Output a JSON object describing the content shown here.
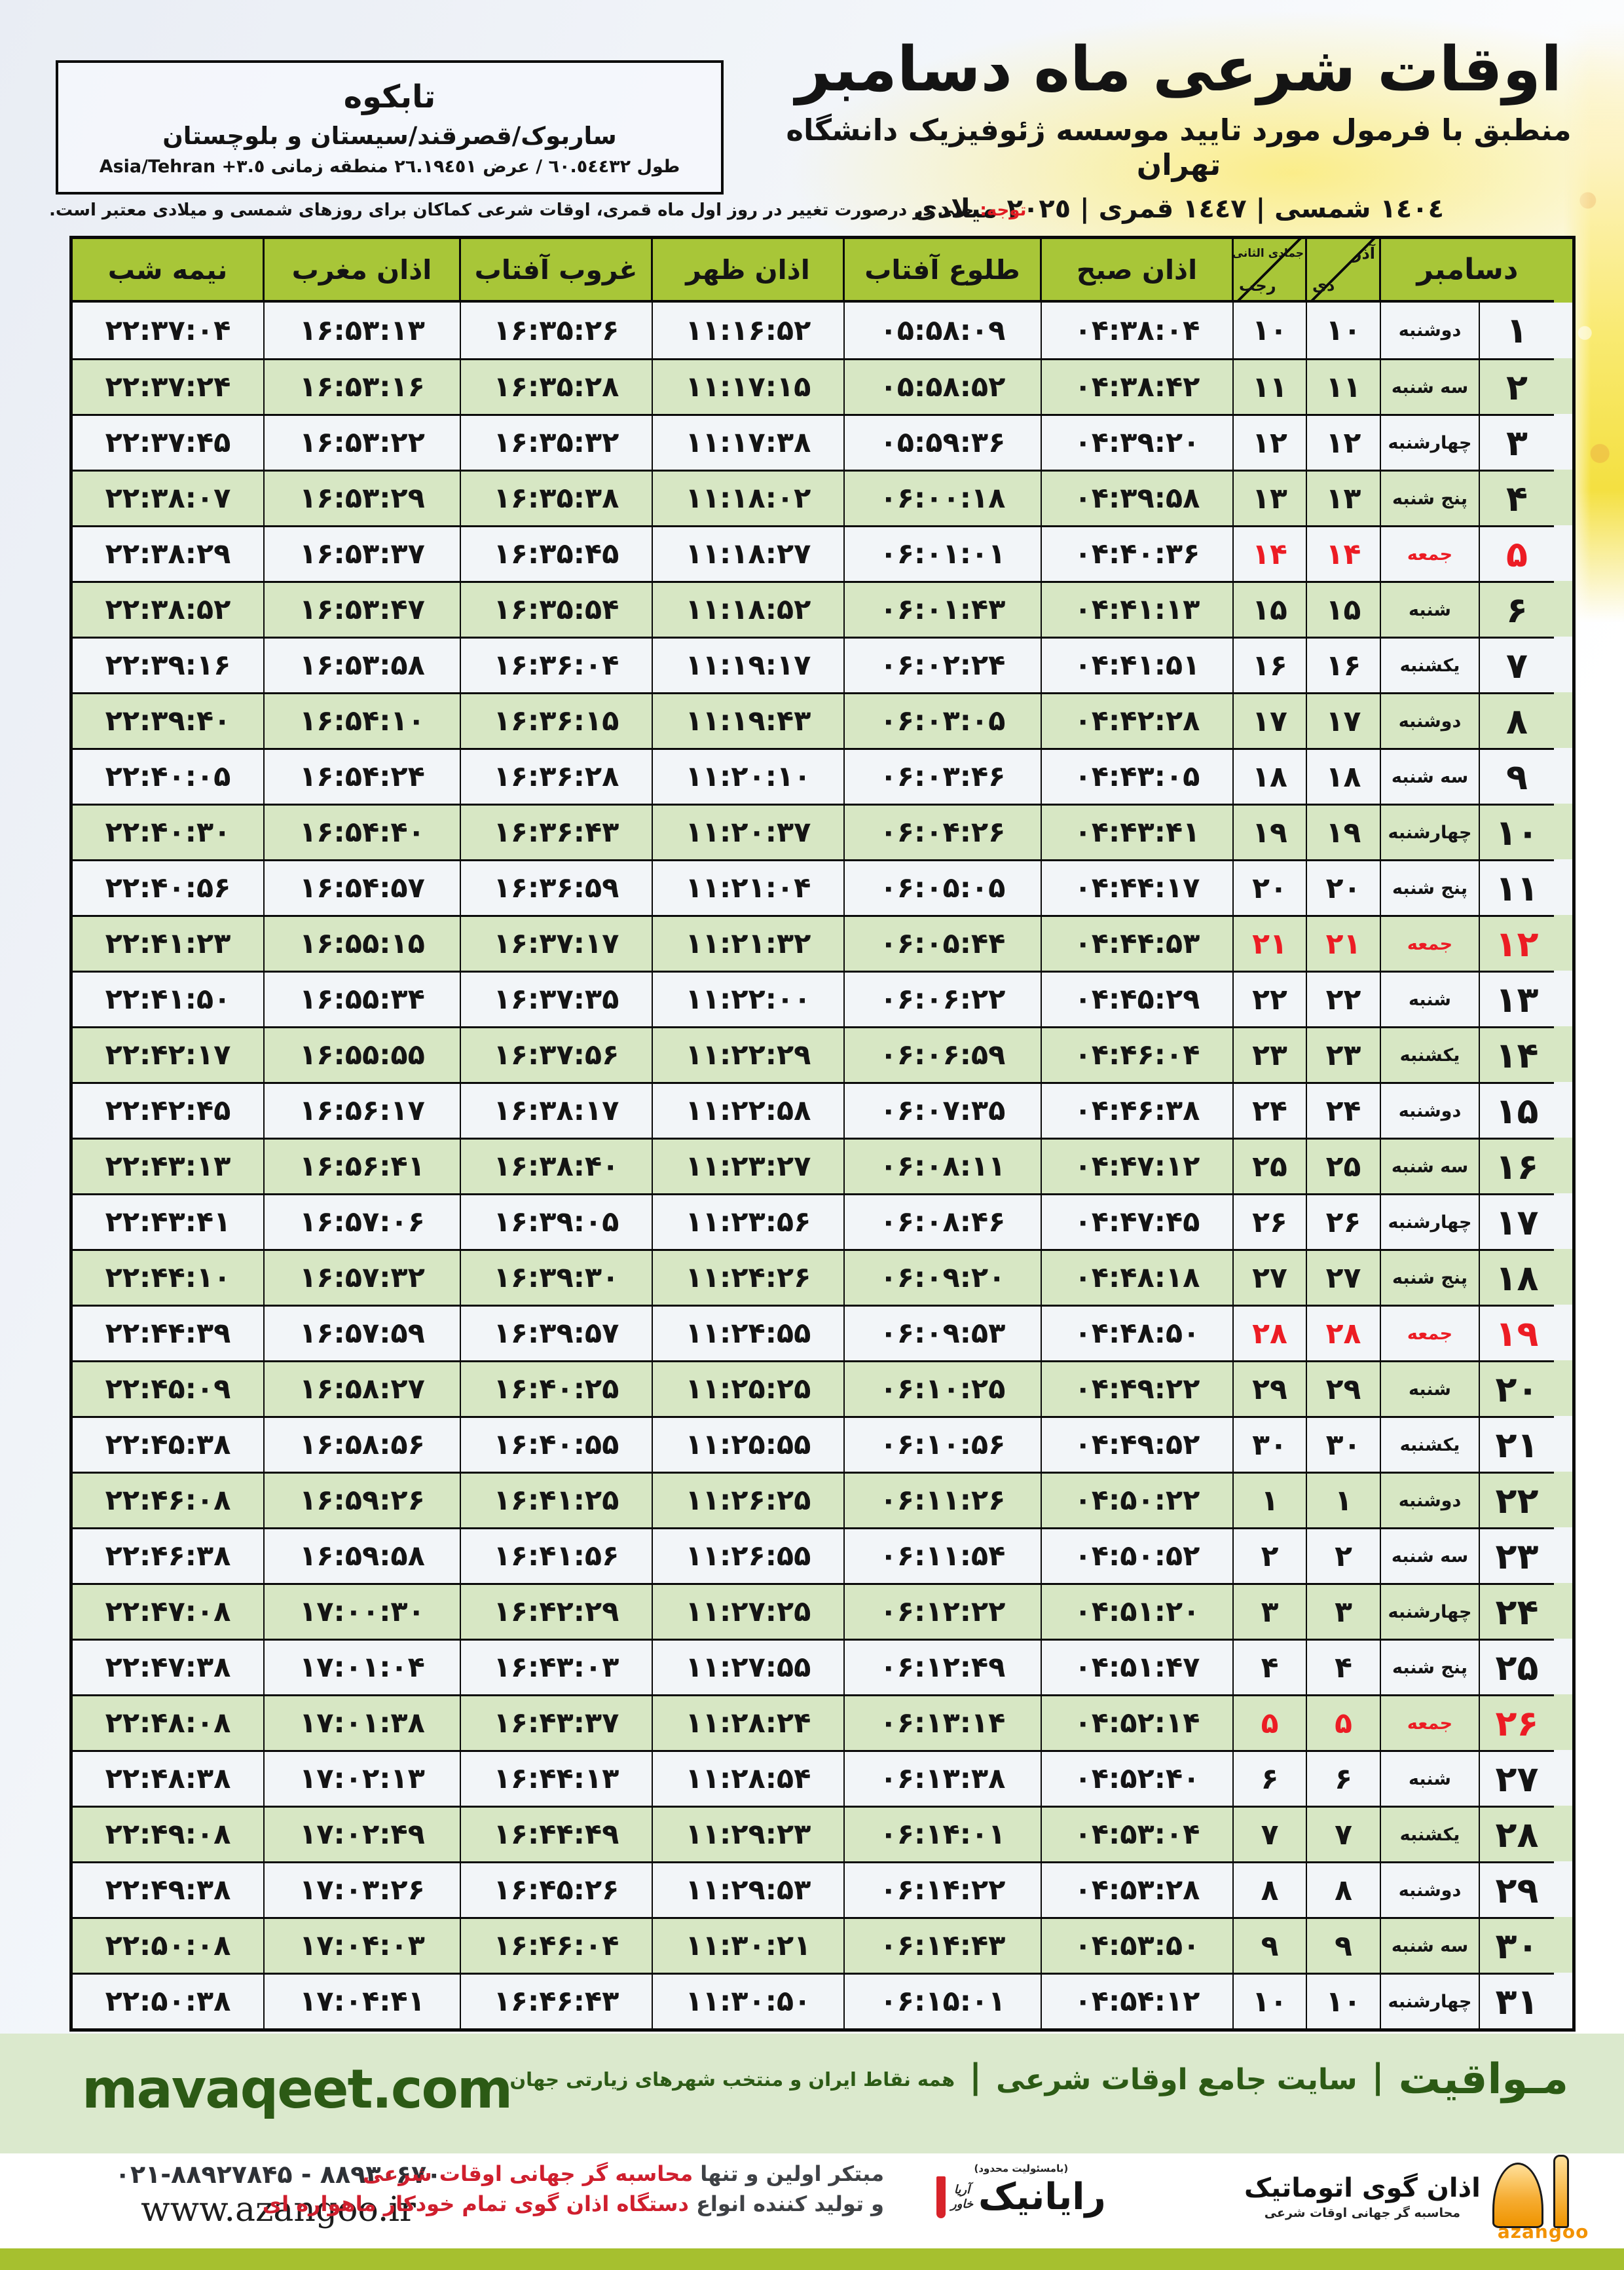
{
  "colors": {
    "header_green": "#a8c638",
    "row_green": "#d7e7c4",
    "row_white": "#f2f5f8",
    "friday_red": "#ec1c24",
    "footer_green": "#dbe9cd",
    "brand_dark_green": "#2c5a15",
    "azangoo_orange": "#f29200",
    "bottom_green": "#a6c02f"
  },
  "header": {
    "title": "اوقات شرعی ماه دسامبر",
    "subtitle": "منطبق با فرمول مورد تایید موسسه ژئوفیزیک دانشگاه تهران",
    "date_line": "١٤٠٤ شمسی | ١٤٤٧ قمری | ٢٠٢٥ میلادی",
    "location": {
      "city": "تابکوه",
      "region": "ساربوک/قصرقند/سیستان و بلوچستان",
      "coords_rtl": "طول ٦٠.٥٤٤٣٢ / عرض ٢٦.١٩٤٥١ منطقه زمانی",
      "coords_ltr": "Asia/Tehran +٣.٥"
    },
    "notice_label": "توجه:",
    "notice_text": " حتی در درصورت تغییر در روز اول ماه قمری، اوقات شرعی کماکان برای روزهای شمسی و میلادی معتبر است."
  },
  "table": {
    "columns": {
      "december": "دسامبر",
      "solar_top": "آذر",
      "solar_bottom": "دی",
      "lunar_top": "جمادی الثانی",
      "lunar_bottom": "رجب",
      "fajr": "اذان صبح",
      "sunrise": "طلوع آفتاب",
      "dhuhr": "اذان ظهر",
      "sunset": "غروب آفتاب",
      "maghrib": "اذان مغرب",
      "midnight": "نیمه شب"
    },
    "rows": [
      {
        "day": "1",
        "weekday": "دوشنبه",
        "solar": "10",
        "lunar": "10",
        "fajr": "04:38:04",
        "sunrise": "05:58:09",
        "dhuhr": "11:16:52",
        "sunset": "16:35:26",
        "maghrib": "16:53:13",
        "midnight": "22:37:04",
        "friday": false
      },
      {
        "day": "2",
        "weekday": "سه شنبه",
        "solar": "11",
        "lunar": "11",
        "fajr": "04:38:42",
        "sunrise": "05:58:52",
        "dhuhr": "11:17:15",
        "sunset": "16:35:28",
        "maghrib": "16:53:16",
        "midnight": "22:37:24",
        "friday": false
      },
      {
        "day": "3",
        "weekday": "چهارشنبه",
        "solar": "12",
        "lunar": "12",
        "fajr": "04:39:20",
        "sunrise": "05:59:36",
        "dhuhr": "11:17:38",
        "sunset": "16:35:32",
        "maghrib": "16:53:22",
        "midnight": "22:37:45",
        "friday": false
      },
      {
        "day": "4",
        "weekday": "پنج شنبه",
        "solar": "13",
        "lunar": "13",
        "fajr": "04:39:58",
        "sunrise": "06:00:18",
        "dhuhr": "11:18:02",
        "sunset": "16:35:38",
        "maghrib": "16:53:29",
        "midnight": "22:38:07",
        "friday": false
      },
      {
        "day": "5",
        "weekday": "جمعه",
        "solar": "14",
        "lunar": "14",
        "fajr": "04:40:36",
        "sunrise": "06:01:01",
        "dhuhr": "11:18:27",
        "sunset": "16:35:45",
        "maghrib": "16:53:37",
        "midnight": "22:38:29",
        "friday": true
      },
      {
        "day": "6",
        "weekday": "شنبه",
        "solar": "15",
        "lunar": "15",
        "fajr": "04:41:13",
        "sunrise": "06:01:43",
        "dhuhr": "11:18:52",
        "sunset": "16:35:54",
        "maghrib": "16:53:47",
        "midnight": "22:38:52",
        "friday": false
      },
      {
        "day": "7",
        "weekday": "یکشنبه",
        "solar": "16",
        "lunar": "16",
        "fajr": "04:41:51",
        "sunrise": "06:02:24",
        "dhuhr": "11:19:17",
        "sunset": "16:36:04",
        "maghrib": "16:53:58",
        "midnight": "22:39:16",
        "friday": false
      },
      {
        "day": "8",
        "weekday": "دوشنبه",
        "solar": "17",
        "lunar": "17",
        "fajr": "04:42:28",
        "sunrise": "06:03:05",
        "dhuhr": "11:19:43",
        "sunset": "16:36:15",
        "maghrib": "16:54:10",
        "midnight": "22:39:40",
        "friday": false
      },
      {
        "day": "9",
        "weekday": "سه شنبه",
        "solar": "18",
        "lunar": "18",
        "fajr": "04:43:05",
        "sunrise": "06:03:46",
        "dhuhr": "11:20:10",
        "sunset": "16:36:28",
        "maghrib": "16:54:24",
        "midnight": "22:40:05",
        "friday": false
      },
      {
        "day": "10",
        "weekday": "چهارشنبه",
        "solar": "19",
        "lunar": "19",
        "fajr": "04:43:41",
        "sunrise": "06:04:26",
        "dhuhr": "11:20:37",
        "sunset": "16:36:43",
        "maghrib": "16:54:40",
        "midnight": "22:40:30",
        "friday": false
      },
      {
        "day": "11",
        "weekday": "پنج شنبه",
        "solar": "20",
        "lunar": "20",
        "fajr": "04:44:17",
        "sunrise": "06:05:05",
        "dhuhr": "11:21:04",
        "sunset": "16:36:59",
        "maghrib": "16:54:57",
        "midnight": "22:40:56",
        "friday": false
      },
      {
        "day": "12",
        "weekday": "جمعه",
        "solar": "21",
        "lunar": "21",
        "fajr": "04:44:53",
        "sunrise": "06:05:44",
        "dhuhr": "11:21:32",
        "sunset": "16:37:17",
        "maghrib": "16:55:15",
        "midnight": "22:41:23",
        "friday": true
      },
      {
        "day": "13",
        "weekday": "شنبه",
        "solar": "22",
        "lunar": "22",
        "fajr": "04:45:29",
        "sunrise": "06:06:22",
        "dhuhr": "11:22:00",
        "sunset": "16:37:35",
        "maghrib": "16:55:34",
        "midnight": "22:41:50",
        "friday": false
      },
      {
        "day": "14",
        "weekday": "یکشنبه",
        "solar": "23",
        "lunar": "23",
        "fajr": "04:46:04",
        "sunrise": "06:06:59",
        "dhuhr": "11:22:29",
        "sunset": "16:37:56",
        "maghrib": "16:55:55",
        "midnight": "22:42:17",
        "friday": false
      },
      {
        "day": "15",
        "weekday": "دوشنبه",
        "solar": "24",
        "lunar": "24",
        "fajr": "04:46:38",
        "sunrise": "06:07:35",
        "dhuhr": "11:22:58",
        "sunset": "16:38:17",
        "maghrib": "16:56:17",
        "midnight": "22:42:45",
        "friday": false
      },
      {
        "day": "16",
        "weekday": "سه شنبه",
        "solar": "25",
        "lunar": "25",
        "fajr": "04:47:12",
        "sunrise": "06:08:11",
        "dhuhr": "11:23:27",
        "sunset": "16:38:40",
        "maghrib": "16:56:41",
        "midnight": "22:43:13",
        "friday": false
      },
      {
        "day": "17",
        "weekday": "چهارشنبه",
        "solar": "26",
        "lunar": "26",
        "fajr": "04:47:45",
        "sunrise": "06:08:46",
        "dhuhr": "11:23:56",
        "sunset": "16:39:05",
        "maghrib": "16:57:06",
        "midnight": "22:43:41",
        "friday": false
      },
      {
        "day": "18",
        "weekday": "پنج شنبه",
        "solar": "27",
        "lunar": "27",
        "fajr": "04:48:18",
        "sunrise": "06:09:20",
        "dhuhr": "11:24:26",
        "sunset": "16:39:30",
        "maghrib": "16:57:32",
        "midnight": "22:44:10",
        "friday": false
      },
      {
        "day": "19",
        "weekday": "جمعه",
        "solar": "28",
        "lunar": "28",
        "fajr": "04:48:50",
        "sunrise": "06:09:53",
        "dhuhr": "11:24:55",
        "sunset": "16:39:57",
        "maghrib": "16:57:59",
        "midnight": "22:44:39",
        "friday": true
      },
      {
        "day": "20",
        "weekday": "شنبه",
        "solar": "29",
        "lunar": "29",
        "fajr": "04:49:22",
        "sunrise": "06:10:25",
        "dhuhr": "11:25:25",
        "sunset": "16:40:25",
        "maghrib": "16:58:27",
        "midnight": "22:45:09",
        "friday": false
      },
      {
        "day": "21",
        "weekday": "یکشنبه",
        "solar": "30",
        "lunar": "30",
        "fajr": "04:49:52",
        "sunrise": "06:10:56",
        "dhuhr": "11:25:55",
        "sunset": "16:40:55",
        "maghrib": "16:58:56",
        "midnight": "22:45:38",
        "friday": false
      },
      {
        "day": "22",
        "weekday": "دوشنبه",
        "solar": "1",
        "lunar": "1",
        "fajr": "04:50:22",
        "sunrise": "06:11:26",
        "dhuhr": "11:26:25",
        "sunset": "16:41:25",
        "maghrib": "16:59:26",
        "midnight": "22:46:08",
        "friday": false
      },
      {
        "day": "23",
        "weekday": "سه شنبه",
        "solar": "2",
        "lunar": "2",
        "fajr": "04:50:52",
        "sunrise": "06:11:54",
        "dhuhr": "11:26:55",
        "sunset": "16:41:56",
        "maghrib": "16:59:58",
        "midnight": "22:46:38",
        "friday": false
      },
      {
        "day": "24",
        "weekday": "چهارشنبه",
        "solar": "3",
        "lunar": "3",
        "fajr": "04:51:20",
        "sunrise": "06:12:22",
        "dhuhr": "11:27:25",
        "sunset": "16:42:29",
        "maghrib": "17:00:30",
        "midnight": "22:47:08",
        "friday": false
      },
      {
        "day": "25",
        "weekday": "پنج شنبه",
        "solar": "4",
        "lunar": "4",
        "fajr": "04:51:47",
        "sunrise": "06:12:49",
        "dhuhr": "11:27:55",
        "sunset": "16:43:03",
        "maghrib": "17:01:04",
        "midnight": "22:47:38",
        "friday": false
      },
      {
        "day": "26",
        "weekday": "جمعه",
        "solar": "5",
        "lunar": "5",
        "fajr": "04:52:14",
        "sunrise": "06:13:14",
        "dhuhr": "11:28:24",
        "sunset": "16:43:37",
        "maghrib": "17:01:38",
        "midnight": "22:48:08",
        "friday": true
      },
      {
        "day": "27",
        "weekday": "شنبه",
        "solar": "6",
        "lunar": "6",
        "fajr": "04:52:40",
        "sunrise": "06:13:38",
        "dhuhr": "11:28:54",
        "sunset": "16:44:13",
        "maghrib": "17:02:13",
        "midnight": "22:48:38",
        "friday": false
      },
      {
        "day": "28",
        "weekday": "یکشنبه",
        "solar": "7",
        "lunar": "7",
        "fajr": "04:53:04",
        "sunrise": "06:14:01",
        "dhuhr": "11:29:23",
        "sunset": "16:44:49",
        "maghrib": "17:02:49",
        "midnight": "22:49:08",
        "friday": false
      },
      {
        "day": "29",
        "weekday": "دوشنبه",
        "solar": "8",
        "lunar": "8",
        "fajr": "04:53:28",
        "sunrise": "06:14:22",
        "dhuhr": "11:29:53",
        "sunset": "16:45:26",
        "maghrib": "17:03:26",
        "midnight": "22:49:38",
        "friday": false
      },
      {
        "day": "30",
        "weekday": "سه شنبه",
        "solar": "9",
        "lunar": "9",
        "fajr": "04:53:50",
        "sunrise": "06:14:43",
        "dhuhr": "11:30:21",
        "sunset": "16:46:04",
        "maghrib": "17:04:03",
        "midnight": "22:50:08",
        "friday": false
      },
      {
        "day": "31",
        "weekday": "چهارشنبه",
        "solar": "10",
        "lunar": "10",
        "fajr": "04:54:12",
        "sunrise": "06:15:01",
        "dhuhr": "11:30:50",
        "sunset": "16:46:43",
        "maghrib": "17:04:41",
        "midnight": "22:50:38",
        "friday": false
      }
    ]
  },
  "footer": {
    "site_en": "mavaqeet.com",
    "brand_fa": "مـواقیت",
    "sep": "|",
    "site_fa_mid": "سایت جامع اوقات شرعی",
    "site_fa_tail": "همه نقاط ایران و منتخب شهرهای زیارتی جهان",
    "phone": "021-88927845 - 88930670",
    "website": "www.azangoo.ir",
    "promo_line1_black": "مبتکر اولین و تنها",
    "promo_line1_red": "محاسبه گر جهانی اوقات شرعی",
    "promo_line2_black": "و تولید کننده انواع",
    "promo_line2_red": "دستگاه اذان گوی تمام خودکار ماهواره ای",
    "rayanik_note": "(بامسئولیت محدود)",
    "rayanik_name": "رایانیک",
    "rayanik_sub1": "آریا",
    "rayanik_sub2": "خاور",
    "azangoo_fa": "اذان گوی اتوماتیک",
    "azangoo_sub": "محاسبه گر جهانی اوقات شرعی",
    "azangoo_en": "azangoo"
  }
}
